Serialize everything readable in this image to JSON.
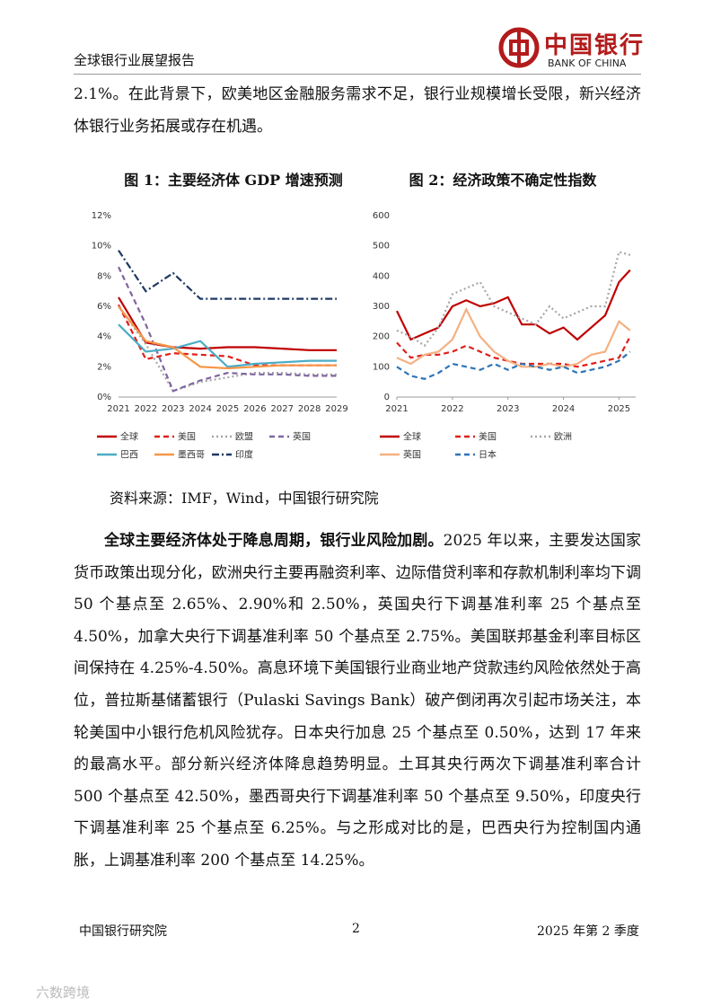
{
  "header": {
    "title": "全球银行业展望报告",
    "logo_cn": "中国银行",
    "logo_en": "BANK OF CHINA"
  },
  "paragraphs": [
    {
      "text": "2.1%。在此背景下，欧美地区金融服务需求不足，银行业规模增长受限，新兴经济体银行业务拓展或存在机遇。"
    },
    {
      "lead": "全球主要经济体处于降息周期，银行业风险加剧。",
      "text": "2025 年以来，主要发达国家货币政策出现分化，欧洲央行主要再融资利率、边际借贷利率和存款机制利率均下调 50 个基点至 2.65%、2.90%和 2.50%，英国央行下调基准利率 25 个基点至 4.50%，加拿大央行下调基准利率 50 个基点至 2.75%。美国联邦基金利率目标区间保持在 4.25%-4.50%。高息环境下美国银行业商业地产贷款违约风险依然处于高位，普拉斯基储蓄银行（Pulaski Savings Bank）破产倒闭再次引起市场关注，本轮美国中小银行危机风险犹存。日本央行加息 25 个基点至 0.50%，达到 17 年来的最高水平。部分新兴经济体降息趋势明显。土耳其央行两次下调基准利率合计 500 个基点至 42.50%，墨西哥央行下调基准利率 50 个基点至 9.50%，印度央行下调基准利率 25 个基点至 6.25%。与之形成对比的是，巴西央行为控制国内通胀，上调基准利率 200 个基点至 14.25%。"
    }
  ],
  "source": "资料来源：IMF，Wind，中国银行研究院",
  "chart_data": [
    {
      "type": "line",
      "title": "图 1：主要经济体 GDP 增速预测",
      "categories": [
        "2021",
        "2022",
        "2023",
        "2024",
        "2025",
        "2026",
        "2027",
        "2028",
        "2029"
      ],
      "ylim": [
        0,
        12
      ],
      "yticks": [
        {
          "value": 0,
          "label": "0%"
        },
        {
          "value": 2,
          "label": "2%"
        },
        {
          "value": 4,
          "label": "4%"
        },
        {
          "value": 6,
          "label": "6%"
        },
        {
          "value": 8,
          "label": "8%"
        },
        {
          "value": 10,
          "label": "10%"
        },
        {
          "value": 12,
          "label": "12%"
        }
      ],
      "series": [
        {
          "name": "全球",
          "color": "#c00000",
          "dash": "solid",
          "values": [
            6.6,
            3.6,
            3.3,
            3.2,
            3.3,
            3.3,
            3.2,
            3.1,
            3.1
          ]
        },
        {
          "name": "美国",
          "color": "#e0201b",
          "dash": "dashed",
          "values": [
            6.1,
            2.5,
            2.9,
            2.8,
            2.7,
            2.1,
            2.1,
            2.1,
            2.1
          ]
        },
        {
          "name": "欧盟",
          "color": "#a6a6a6",
          "dash": "dotted",
          "values": [
            6.0,
            3.5,
            0.4,
            1.0,
            1.3,
            1.6,
            1.6,
            1.5,
            1.5
          ]
        },
        {
          "name": "英国",
          "color": "#8064a2",
          "dash": "dashed",
          "values": [
            8.6,
            4.8,
            0.4,
            1.1,
            1.6,
            1.5,
            1.5,
            1.4,
            1.4
          ]
        },
        {
          "name": "巴西",
          "color": "#4bacc6",
          "dash": "solid",
          "values": [
            4.8,
            3.0,
            3.2,
            3.7,
            2.0,
            2.2,
            2.3,
            2.4,
            2.4
          ]
        },
        {
          "name": "墨西哥",
          "color": "#f79646",
          "dash": "solid",
          "values": [
            6.0,
            3.7,
            3.3,
            2.0,
            1.9,
            2.0,
            2.1,
            2.1,
            2.1
          ]
        },
        {
          "name": "印度",
          "color": "#1f3864",
          "dash": "dashdot",
          "values": [
            9.7,
            7.0,
            8.2,
            6.5,
            6.5,
            6.5,
            6.5,
            6.5,
            6.5
          ]
        }
      ]
    },
    {
      "type": "line",
      "title": "图 2：经济政策不确定性指数",
      "x": [
        2021,
        2021.25,
        2021.5,
        2021.75,
        2022,
        2022.25,
        2022.5,
        2022.75,
        2023,
        2023.25,
        2023.5,
        2023.75,
        2024,
        2024.25,
        2024.5,
        2024.75,
        2025,
        2025.2
      ],
      "xlim": [
        2021,
        2025.3
      ],
      "xticks": [
        2021,
        2022,
        2023,
        2024,
        2025
      ],
      "ylim": [
        0,
        600
      ],
      "yticks": [
        0,
        100,
        200,
        300,
        400,
        500,
        600
      ],
      "series": [
        {
          "name": "全球",
          "color": "#c00000",
          "dash": "solid",
          "values": [
            285,
            190,
            210,
            230,
            300,
            320,
            300,
            310,
            330,
            240,
            240,
            210,
            230,
            190,
            230,
            270,
            380,
            420
          ]
        },
        {
          "name": "美国",
          "color": "#e0201b",
          "dash": "dashed",
          "values": [
            180,
            130,
            140,
            140,
            150,
            170,
            150,
            130,
            120,
            110,
            110,
            110,
            110,
            100,
            110,
            120,
            130,
            200
          ]
        },
        {
          "name": "欧洲",
          "color": "#a6a6a6",
          "dash": "dotted",
          "values": [
            220,
            200,
            170,
            230,
            340,
            360,
            380,
            300,
            280,
            260,
            240,
            300,
            260,
            280,
            300,
            300,
            480,
            470
          ]
        },
        {
          "name": "英国",
          "color": "#f4b183",
          "dash": "solid",
          "values": [
            130,
            110,
            140,
            150,
            190,
            290,
            200,
            150,
            120,
            100,
            100,
            110,
            100,
            110,
            140,
            150,
            250,
            220
          ]
        },
        {
          "name": "日本",
          "color": "#2e75b6",
          "dash": "dashed",
          "values": [
            100,
            70,
            60,
            80,
            110,
            100,
            90,
            110,
            90,
            110,
            100,
            90,
            100,
            80,
            90,
            100,
            120,
            150
          ]
        }
      ]
    }
  ],
  "footer": {
    "left": "中国银行研究院",
    "page": "2",
    "right": "2025 年第 2 季度"
  },
  "watermark": "六数跨境"
}
